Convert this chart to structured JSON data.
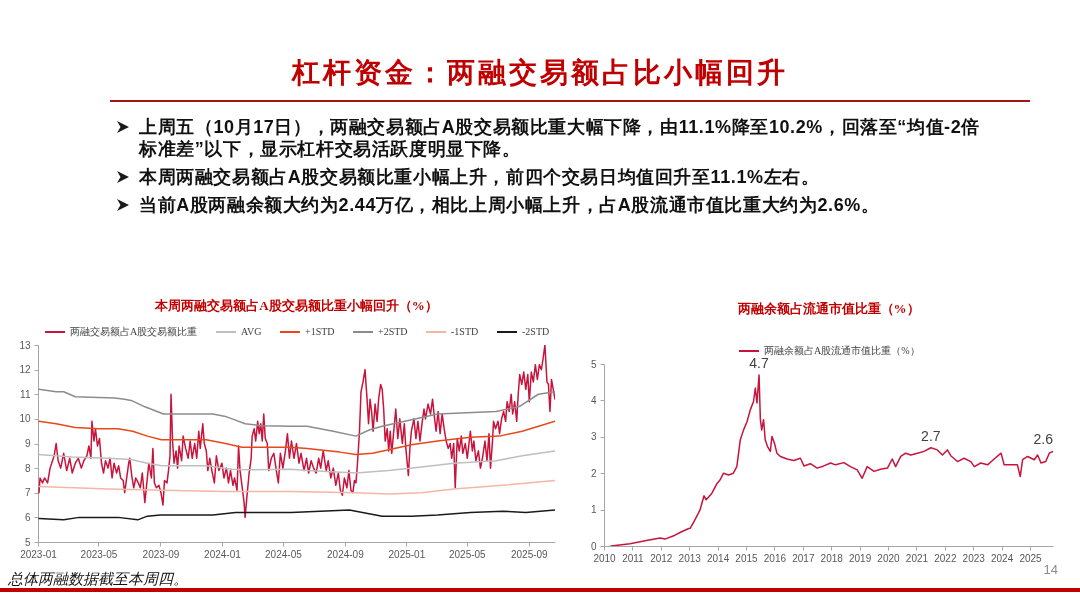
{
  "chart_data": [
    {
      "type": "other",
      "title": "杠杆资金：两融交易额占比小幅回升",
      "annotations": [
        "上周五（10月17日），两融交易额占A股交易额比重大幅下降，由11.1%降至10.2%，回落至“均值-2倍标准差”以下，显示杠杆交易活跃度明显下降。",
        "本周两融交易额占A股交易额比重小幅上升，前四个交易日均值回升至11.1%左右。",
        "当前A股两融余额大约为2.44万亿，相比上周小幅上升，占A股流通市值比重大约为2.6%。"
      ]
    },
    {
      "type": "line",
      "title": "本周两融交易额占A股交易额比重小幅回升（%）",
      "legend": "top",
      "xlim": [
        "2023-01-01",
        "2025-10-23"
      ],
      "xticks": [
        "2023-01",
        "2023-05",
        "2023-09",
        "2024-01",
        "2024-05",
        "2024-09",
        "2025-01",
        "2025-05",
        "2025-09"
      ],
      "ylim": [
        5,
        13
      ],
      "yticks": [
        5,
        6,
        7,
        8,
        9,
        10,
        11,
        12,
        13
      ],
      "series": [
        {
          "name": "两融交易额占A股交易额比重",
          "color": "#c8143c",
          "x": [
            "2023-01-03",
            "2023-01-05",
            "2023-01-10",
            "2023-01-14",
            "2023-01-20",
            "2023-01-25",
            "2023-02-02",
            "2023-02-06",
            "2023-02-10",
            "2023-02-15",
            "2023-02-21",
            "2023-02-27",
            "2023-03-05",
            "2023-03-10",
            "2023-03-16",
            "2023-03-22",
            "2023-03-28",
            "2023-04-02",
            "2023-04-08",
            "2023-04-12",
            "2023-04-16",
            "2023-04-18",
            "2023-04-22",
            "2023-04-25",
            "2023-04-29",
            "2023-05-03",
            "2023-05-07",
            "2023-05-11",
            "2023-05-15",
            "2023-05-20",
            "2023-05-24",
            "2023-05-28",
            "2023-06-01",
            "2023-06-06",
            "2023-06-10",
            "2023-06-14",
            "2023-06-19",
            "2023-06-22",
            "2023-06-26",
            "2023-06-30",
            "2023-07-02",
            "2023-07-06",
            "2023-07-10",
            "2023-07-14",
            "2023-07-19",
            "2023-07-23",
            "2023-07-27",
            "2023-08-01",
            "2023-08-05",
            "2023-08-09",
            "2023-08-14",
            "2023-08-17",
            "2023-08-20",
            "2023-08-24",
            "2023-08-29",
            "2023-09-02",
            "2023-09-06",
            "2023-09-09",
            "2023-09-14",
            "2023-09-17",
            "2023-09-20",
            "2023-09-22",
            "2023-09-25",
            "2023-09-28",
            "2023-10-02",
            "2023-10-05",
            "2023-10-08",
            "2023-10-13",
            "2023-10-16",
            "2023-10-21",
            "2023-10-26",
            "2023-10-30",
            "2023-11-03",
            "2023-11-08",
            "2023-11-12",
            "2023-11-16",
            "2023-11-19",
            "2023-11-24",
            "2023-11-27",
            "2023-12-01",
            "2023-12-04",
            "2023-12-08",
            "2023-12-12",
            "2023-12-17",
            "2023-12-21",
            "2023-12-26",
            "2024-01-01",
            "2024-01-05",
            "2024-01-10",
            "2024-01-14",
            "2024-01-18",
            "2024-01-23",
            "2024-01-26",
            "2024-01-31",
            "2024-02-03",
            "2024-02-06",
            "2024-02-11",
            "2024-02-14",
            "2024-02-16",
            "2024-02-19",
            "2024-02-24",
            "2024-02-28",
            "2024-03-01",
            "2024-03-05",
            "2024-03-08",
            "2024-03-12",
            "2024-03-15",
            "2024-03-18",
            "2024-03-21",
            "2024-03-24",
            "2024-03-27",
            "2024-03-31",
            "2024-04-03",
            "2024-04-08",
            "2024-04-13",
            "2024-04-18",
            "2024-04-22",
            "2024-04-26",
            "2024-05-01",
            "2024-05-06",
            "2024-05-10",
            "2024-05-14",
            "2024-05-18",
            "2024-05-23",
            "2024-05-28",
            "2024-06-02",
            "2024-06-06",
            "2024-06-12",
            "2024-06-17",
            "2024-06-21",
            "2024-06-26",
            "2024-07-01",
            "2024-07-06",
            "2024-07-11",
            "2024-07-15",
            "2024-07-20",
            "2024-07-26",
            "2024-07-30",
            "2024-08-04",
            "2024-08-09",
            "2024-08-14",
            "2024-08-19",
            "2024-08-23",
            "2024-08-27",
            "2024-08-31",
            "2024-09-05",
            "2024-09-09",
            "2024-09-13",
            "2024-09-17",
            "2024-09-20",
            "2024-09-23",
            "2024-09-26",
            "2024-09-30",
            "2024-10-03",
            "2024-10-07",
            "2024-10-11",
            "2024-10-15",
            "2024-10-18",
            "2024-10-21",
            "2024-10-24",
            "2024-10-27",
            "2024-10-31",
            "2024-11-04",
            "2024-11-07",
            "2024-11-11",
            "2024-11-14",
            "2024-11-17",
            "2024-11-20",
            "2024-11-24",
            "2024-11-27",
            "2024-11-30",
            "2024-12-03",
            "2024-12-07",
            "2024-12-11",
            "2024-12-15",
            "2024-12-19",
            "2024-12-24",
            "2024-12-28",
            "2024-12-31",
            "2025-01-05",
            "2025-01-08",
            "2025-01-11",
            "2025-01-16",
            "2025-01-20",
            "2025-01-24",
            "2025-01-28",
            "2025-02-01",
            "2025-02-05",
            "2025-02-08",
            "2025-02-13",
            "2025-02-18",
            "2025-02-22",
            "2025-02-25",
            "2025-03-01",
            "2025-03-05",
            "2025-03-09",
            "2025-03-13",
            "2025-03-17",
            "2025-03-21",
            "2025-03-25",
            "2025-03-29",
            "2025-04-01",
            "2025-04-05",
            "2025-04-08",
            "2025-04-12",
            "2025-04-16",
            "2025-04-20",
            "2025-04-23",
            "2025-04-28",
            "2025-05-02",
            "2025-05-08",
            "2025-05-12",
            "2025-05-15",
            "2025-05-19",
            "2025-05-24",
            "2025-05-28",
            "2025-06-01",
            "2025-06-06",
            "2025-06-10",
            "2025-06-14",
            "2025-06-17",
            "2025-06-21",
            "2025-06-23",
            "2025-06-27",
            "2025-07-02",
            "2025-07-05",
            "2025-07-09",
            "2025-07-13",
            "2025-07-17",
            "2025-07-20",
            "2025-07-24",
            "2025-07-28",
            "2025-07-31",
            "2025-08-04",
            "2025-08-08",
            "2025-08-11",
            "2025-08-14",
            "2025-08-18",
            "2025-08-22",
            "2025-08-26",
            "2025-08-30",
            "2025-09-02",
            "2025-09-06",
            "2025-09-10",
            "2025-09-14",
            "2025-09-18",
            "2025-09-22",
            "2025-09-26",
            "2025-09-29",
            "2025-10-03",
            "2025-10-07",
            "2025-10-10",
            "2025-10-13",
            "2025-10-16",
            "2025-10-23"
          ],
          "values": [
            7.0,
            7.6,
            7.4,
            7.6,
            7.4,
            8.0,
            8.5,
            9.0,
            8.3,
            8.0,
            8.6,
            7.9,
            8.4,
            7.8,
            8.2,
            8.4,
            8.0,
            8.3,
            8.5,
            8.9,
            8.4,
            9.9,
            9.1,
            9.6,
            8.9,
            9.2,
            8.2,
            7.8,
            8.3,
            8.0,
            8.4,
            7.6,
            8.2,
            7.8,
            8.1,
            7.6,
            7.5,
            7.0,
            7.6,
            8.2,
            8.4,
            7.7,
            7.2,
            7.6,
            7.4,
            7.2,
            7.8,
            6.6,
            7.4,
            8.2,
            7.6,
            8.8,
            7.4,
            7.2,
            7.3,
            7.0,
            6.5,
            7.5,
            7.4,
            7.9,
            8.5,
            11.0,
            9.1,
            8.2,
            8.7,
            8.0,
            8.9,
            8.3,
            9.3,
            8.8,
            8.4,
            9.1,
            8.4,
            9.0,
            8.4,
            9.5,
            8.8,
            9.8,
            9.0,
            8.7,
            7.9,
            8.4,
            7.9,
            7.4,
            8.5,
            7.9,
            8.2,
            7.6,
            8.0,
            7.4,
            7.9,
            7.3,
            7.6,
            7.1,
            8.9,
            7.9,
            7.1,
            6.6,
            6.0,
            6.7,
            7.8,
            8.4,
            9.3,
            9.6,
            9.1,
            9.9,
            9.4,
            9.8,
            9.1,
            10.2,
            9.2,
            9.0,
            7.9,
            8.4,
            8.6,
            7.9,
            7.4,
            8.6,
            8.0,
            8.7,
            9.4,
            8.4,
            9.1,
            8.4,
            9.0,
            8.2,
            8.6,
            7.9,
            8.4,
            7.8,
            8.3,
            8.0,
            7.8,
            8.4,
            8.0,
            8.7,
            7.9,
            8.3,
            7.6,
            8.0,
            7.3,
            7.8,
            7.1,
            6.9,
            7.6,
            7.2,
            7.9,
            7.1,
            7.0,
            7.5,
            7.4,
            8.2,
            9.5,
            11.1,
            11.5,
            12.0,
            10.8,
            9.8,
            10.8,
            10.3,
            9.5,
            10.6,
            9.9,
            10.8,
            11.4,
            11.2,
            10.4,
            9.1,
            9.6,
            8.7,
            9.5,
            8.6,
            9.5,
            10.4,
            9.2,
            10.0,
            9.0,
            9.8,
            8.8,
            7.7,
            8.8,
            9.5,
            10.0,
            9.2,
            9.9,
            9.1,
            9.8,
            10.4,
            10.0,
            10.6,
            10.2,
            10.8,
            10.2,
            9.5,
            10.3,
            9.4,
            10.2,
            9.6,
            9.1,
            8.8,
            9.0,
            8.4,
            9.0,
            7.2,
            9.2,
            8.7,
            9.3,
            8.6,
            9.0,
            8.4,
            9.5,
            8.7,
            9.1,
            8.3,
            8.7,
            8.0,
            8.4,
            9.1,
            8.3,
            9.4,
            8.0,
            9.1,
            9.9,
            9.6,
            9.9,
            9.4,
            10.0,
            10.3,
            9.9,
            10.7,
            10.3,
            11.0,
            10.2,
            10.7,
            9.9,
            11.0,
            11.8,
            11.4,
            11.9,
            11.2,
            11.8,
            10.7,
            11.9,
            11.5,
            12.2,
            11.6,
            12.2,
            12.0,
            12.4,
            13.0,
            11.5,
            11.4,
            10.3,
            11.6,
            10.8
          ]
        },
        {
          "name": "AVG",
          "color": "#bfbfbf",
          "x": [
            "2023-01-03",
            "2023-03-09",
            "2023-05-20",
            "2023-07-05",
            "2023-08-06",
            "2023-09-03",
            "2023-12-01",
            "2024-01-21",
            "2024-02-16",
            "2024-05-17",
            "2024-06-18",
            "2024-09-23",
            "2024-11-27",
            "2025-01-31",
            "2025-04-05",
            "2025-06-28",
            "2025-08-19",
            "2025-10-23"
          ],
          "values": [
            8.55,
            8.45,
            8.4,
            8.35,
            8.2,
            8.1,
            8.1,
            7.95,
            7.93,
            7.95,
            7.9,
            7.8,
            7.9,
            8.05,
            8.2,
            8.3,
            8.5,
            8.7
          ]
        },
        {
          "name": "+1STD",
          "color": "#e8471c",
          "x": [
            "2023-01-03",
            "2023-02-06",
            "2023-03-16",
            "2023-05-01",
            "2023-06-09",
            "2023-07-08",
            "2023-08-06",
            "2023-09-03",
            "2023-12-01",
            "2024-01-08",
            "2024-02-10",
            "2024-03-13",
            "2024-05-17",
            "2024-06-18",
            "2024-08-22",
            "2024-09-23",
            "2024-10-26",
            "2024-11-27",
            "2025-01-11",
            "2025-03-04",
            "2025-05-08",
            "2025-07-05",
            "2025-08-19",
            "2025-10-23"
          ],
          "values": [
            9.9,
            9.8,
            9.65,
            9.6,
            9.6,
            9.5,
            9.3,
            9.15,
            9.15,
            9.0,
            8.85,
            8.85,
            8.85,
            8.8,
            8.65,
            8.55,
            8.6,
            8.75,
            8.95,
            9.1,
            9.25,
            9.3,
            9.5,
            9.9
          ]
        },
        {
          "name": "+2STD",
          "color": "#8c8c8c",
          "x": [
            "2023-01-03",
            "2023-02-06",
            "2023-02-21",
            "2023-03-16",
            "2023-06-02",
            "2023-06-22",
            "2023-07-05",
            "2023-07-31",
            "2023-08-19",
            "2023-09-07",
            "2023-12-14",
            "2024-01-08",
            "2024-01-28",
            "2024-02-16",
            "2024-03-20",
            "2024-05-17",
            "2024-06-18",
            "2024-08-09",
            "2024-09-23",
            "2024-10-19",
            "2024-11-14",
            "2024-12-29",
            "2025-03-04",
            "2025-06-28",
            "2025-08-13",
            "2025-09-20",
            "2025-10-23"
          ],
          "values": [
            11.2,
            11.1,
            11.1,
            10.9,
            10.85,
            10.8,
            10.75,
            10.5,
            10.35,
            10.2,
            10.2,
            10.1,
            9.95,
            9.8,
            9.72,
            9.7,
            9.7,
            9.5,
            9.3,
            9.55,
            9.7,
            9.9,
            10.2,
            10.3,
            10.5,
            11.0,
            11.1
          ]
        },
        {
          "name": "-1STD",
          "color": "#f4b6a6",
          "x": [
            "2023-01-03",
            "2023-05-20",
            "2023-09-03",
            "2024-01-08",
            "2024-05-17",
            "2024-09-23",
            "2024-11-27",
            "2025-01-31",
            "2025-04-05",
            "2025-07-11",
            "2025-10-23"
          ],
          "values": [
            7.25,
            7.15,
            7.1,
            7.05,
            7.05,
            7.0,
            6.95,
            7.0,
            7.15,
            7.3,
            7.5
          ]
        },
        {
          "name": "-2STD",
          "color": "#1a1a1a",
          "x": [
            "2023-01-03",
            "2023-02-21",
            "2023-03-24",
            "2023-06-09",
            "2023-07-18",
            "2023-08-06",
            "2023-09-01",
            "2023-12-14",
            "2024-01-28",
            "2024-02-29",
            "2024-05-17",
            "2024-09-10",
            "2024-10-06",
            "2024-11-14",
            "2025-01-11",
            "2025-03-04",
            "2025-05-08",
            "2025-07-11",
            "2025-08-26",
            "2025-10-23"
          ],
          "values": [
            5.95,
            5.9,
            6.0,
            6.0,
            5.9,
            6.05,
            6.1,
            6.1,
            6.2,
            6.2,
            6.2,
            6.3,
            6.2,
            6.05,
            6.05,
            6.1,
            6.2,
            6.25,
            6.2,
            6.3
          ]
        }
      ],
      "annotations": [
        "总体两融数据截至本周四。"
      ]
    },
    {
      "type": "line",
      "title": "两融余额占流通市值比重（%）",
      "legend": "top",
      "xlim": [
        "2010-01-01",
        "2025-10-23"
      ],
      "xticks": [
        "2010",
        "2011",
        "2012",
        "2013",
        "2014",
        "2015",
        "2016",
        "2017",
        "2018",
        "2019",
        "2020",
        "2021",
        "2022",
        "2023",
        "2024",
        "2025"
      ],
      "ylim": [
        0,
        5
      ],
      "yticks": [
        0,
        1,
        2,
        3,
        4,
        5
      ],
      "series": [
        {
          "name": "两融余额占A股流通市值比重（%）",
          "color": "#c8143c",
          "x": [
            "2010-04-01",
            "2010-12-01",
            "2011-07-01",
            "2011-12-25",
            "2012-02-25",
            "2012-06-15",
            "2012-09-05",
            "2012-12-25",
            "2013-01-15",
            "2013-03-15",
            "2013-05-20",
            "2013-07-10",
            "2013-08-07",
            "2013-10-20",
            "2013-12-25",
            "2014-02-03",
            "2014-03-18",
            "2014-05-22",
            "2014-07-22",
            "2014-09-05",
            "2014-10-20",
            "2014-12-01",
            "2015-01-15",
            "2015-02-25",
            "2015-04-08",
            "2015-05-01",
            "2015-05-22",
            "2015-06-18",
            "2015-07-05",
            "2015-07-22",
            "2015-08-15",
            "2015-09-05",
            "2015-10-05",
            "2015-11-10",
            "2015-12-01",
            "2016-01-01",
            "2016-02-03",
            "2016-03-18",
            "2016-06-13",
            "2016-09-05",
            "2016-12-01",
            "2017-01-15",
            "2017-04-08",
            "2017-07-05",
            "2017-09-27",
            "2017-12-25",
            "2018-02-25",
            "2018-06-13",
            "2018-09-05",
            "2018-12-01",
            "2019-02-03",
            "2019-04-08",
            "2019-07-05",
            "2019-09-27",
            "2019-12-25",
            "2020-02-25",
            "2020-04-08",
            "2020-06-13",
            "2020-08-15",
            "2020-10-20",
            "2021-01-15",
            "2021-04-08",
            "2021-07-05",
            "2021-09-27",
            "2021-12-01",
            "2022-02-03",
            "2022-03-18",
            "2022-06-13",
            "2022-09-05",
            "2022-12-01",
            "2023-01-15",
            "2023-04-08",
            "2023-07-05",
            "2023-09-27",
            "2023-12-25",
            "2024-02-03",
            "2024-05-01",
            "2024-07-22",
            "2024-08-28",
            "2024-09-27",
            "2024-12-01",
            "2025-02-25",
            "2025-04-08",
            "2025-05-22",
            "2025-07-22",
            "2025-09-05",
            "2025-10-23"
          ],
          "values": [
            0.0,
            0.06,
            0.15,
            0.22,
            0.19,
            0.28,
            0.37,
            0.48,
            0.49,
            0.72,
            0.99,
            1.38,
            1.27,
            1.45,
            1.72,
            1.82,
            2.0,
            1.95,
            2.0,
            2.18,
            2.92,
            3.19,
            3.42,
            3.74,
            3.97,
            4.34,
            3.93,
            4.7,
            3.47,
            3.19,
            3.47,
            2.92,
            2.73,
            2.6,
            3.01,
            2.83,
            2.55,
            2.46,
            2.39,
            2.35,
            2.41,
            2.2,
            2.26,
            2.14,
            2.2,
            2.28,
            2.23,
            2.29,
            2.18,
            2.09,
            1.86,
            2.18,
            2.05,
            2.11,
            2.14,
            2.39,
            2.18,
            2.46,
            2.55,
            2.5,
            2.55,
            2.6,
            2.7,
            2.64,
            2.5,
            2.64,
            2.48,
            2.32,
            2.41,
            2.32,
            2.18,
            2.28,
            2.23,
            2.39,
            2.55,
            2.23,
            2.23,
            2.23,
            1.91,
            2.37,
            2.46,
            2.37,
            2.5,
            2.28,
            2.32,
            2.55,
            2.6
          ]
        }
      ],
      "annotations": [
        {
          "text": "4.7",
          "x": "2015-06-18",
          "y": 4.7
        },
        {
          "text": "2.7",
          "x": "2021-07-05",
          "y": 2.7
        },
        {
          "text": "2.6",
          "x": "2025-10-23",
          "y": 2.6
        },
        "14"
      ]
    }
  ]
}
